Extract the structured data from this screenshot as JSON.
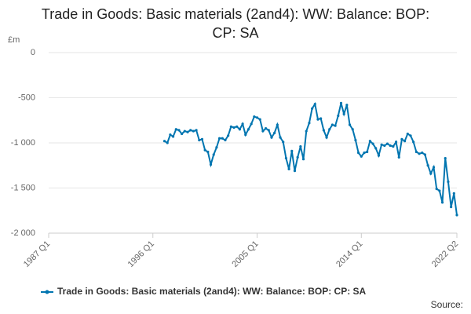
{
  "chart_data": {
    "type": "line",
    "title": "Trade in Goods: Basic materials (2and4): WW: Balance: BOP: CP: SA",
    "y_label": "£m",
    "source": "Source:",
    "x": [
      "1997 Q1",
      "1997 Q2",
      "1997 Q3",
      "1997 Q4",
      "1998 Q1",
      "1998 Q2",
      "1998 Q3",
      "1998 Q4",
      "1999 Q1",
      "1999 Q2",
      "1999 Q3",
      "1999 Q4",
      "2000 Q1",
      "2000 Q2",
      "2000 Q3",
      "2000 Q4",
      "2001 Q1",
      "2001 Q2",
      "2001 Q3",
      "2001 Q4",
      "2002 Q1",
      "2002 Q2",
      "2002 Q3",
      "2002 Q4",
      "2003 Q1",
      "2003 Q2",
      "2003 Q3",
      "2003 Q4",
      "2004 Q1",
      "2004 Q2",
      "2004 Q3",
      "2004 Q4",
      "2005 Q1",
      "2005 Q2",
      "2005 Q3",
      "2005 Q4",
      "2006 Q1",
      "2006 Q2",
      "2006 Q3",
      "2006 Q4",
      "2007 Q1",
      "2007 Q2",
      "2007 Q3",
      "2007 Q4",
      "2008 Q1",
      "2008 Q2",
      "2008 Q3",
      "2008 Q4",
      "2009 Q1",
      "2009 Q2",
      "2009 Q3",
      "2009 Q4",
      "2010 Q1",
      "2010 Q2",
      "2010 Q3",
      "2010 Q4",
      "2011 Q1",
      "2011 Q2",
      "2011 Q3",
      "2011 Q4",
      "2012 Q1",
      "2012 Q2",
      "2012 Q3",
      "2012 Q4",
      "2013 Q1",
      "2013 Q2",
      "2013 Q3",
      "2013 Q4",
      "2014 Q1",
      "2014 Q2",
      "2014 Q3",
      "2014 Q4",
      "2015 Q1",
      "2015 Q2",
      "2015 Q3",
      "2015 Q4",
      "2016 Q1",
      "2016 Q2",
      "2016 Q3",
      "2016 Q4",
      "2017 Q1",
      "2017 Q2",
      "2017 Q3",
      "2017 Q4",
      "2018 Q1",
      "2018 Q2",
      "2018 Q3",
      "2018 Q4",
      "2019 Q1",
      "2019 Q2",
      "2019 Q3",
      "2019 Q4",
      "2020 Q1",
      "2020 Q2",
      "2020 Q3",
      "2020 Q4",
      "2021 Q1",
      "2021 Q2",
      "2021 Q3",
      "2021 Q4",
      "2022 Q1",
      "2022 Q2"
    ],
    "series": [
      {
        "name": "Trade in Goods: Basic materials (2and4): WW: Balance: BOP: CP: SA",
        "color": "#0075b0",
        "values": [
          -980,
          -1000,
          -910,
          -930,
          -850,
          -860,
          -900,
          -870,
          -880,
          -860,
          -870,
          -860,
          -970,
          -960,
          -1080,
          -1100,
          -1240,
          -1130,
          -1050,
          -950,
          -950,
          -970,
          -920,
          -820,
          -830,
          -820,
          -850,
          -790,
          -910,
          -850,
          -790,
          -710,
          -720,
          -740,
          -870,
          -840,
          -860,
          -940,
          -890,
          -800,
          -940,
          -990,
          -1170,
          -1290,
          -1090,
          -1310,
          -1160,
          -1040,
          -1180,
          -870,
          -780,
          -620,
          -570,
          -740,
          -730,
          -860,
          -940,
          -850,
          -800,
          -810,
          -700,
          -560,
          -680,
          -580,
          -800,
          -850,
          -970,
          -1110,
          -1150,
          -1110,
          -1100,
          -980,
          -1010,
          -1060,
          -1140,
          -1020,
          -1030,
          -1010,
          -1030,
          -1040,
          -990,
          -1160,
          -960,
          -980,
          -900,
          -920,
          -990,
          -1100,
          -1120,
          -1110,
          -1130,
          -1250,
          -1340,
          -1270,
          -1510,
          -1530,
          -1660,
          -1170,
          -1430,
          -1710,
          -1560,
          -1800
        ]
      }
    ],
    "xlim": [
      "1987 Q1",
      "2022 Q2"
    ],
    "xticks": [
      "1987 Q1",
      "1996 Q1",
      "2005 Q1",
      "2014 Q1",
      "2022 Q2"
    ],
    "ylim": [
      -2000,
      0
    ],
    "yticks": [
      0,
      -500,
      {
        "value": -1000,
        "label": "-1 000"
      },
      {
        "value": -1500,
        "label": "-1 500"
      },
      {
        "value": -2000,
        "label": "-2 000"
      }
    ],
    "grid": true,
    "legend": "bottom"
  }
}
